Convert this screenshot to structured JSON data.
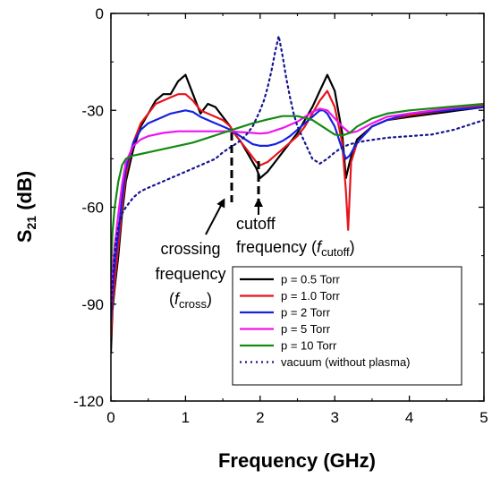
{
  "chart_data": {
    "type": "line",
    "title": "",
    "xlabel": "Frequency (GHz)",
    "ylabel_main": "S",
    "ylabel_sub": "21",
    "ylabel_unit": " (dB)",
    "xlim": [
      0,
      5
    ],
    "ylim": [
      -120,
      0
    ],
    "x_ticks": [
      "0",
      "1",
      "2",
      "3",
      "4",
      "5"
    ],
    "y_ticks": [
      "-120",
      "-90",
      "-60",
      "-30",
      "0"
    ],
    "grid": false,
    "legend_position": "bottom-right",
    "annotations": {
      "crossing": {
        "lines": [
          "crossing",
          "frequency"
        ],
        "paren_open": "(",
        "f": "f",
        "sub": "cross",
        "paren_close": ")"
      },
      "cutoff": {
        "lines": [
          "cutoff"
        ],
        "prefix": "frequency (",
        "f": "f",
        "sub": "cutoff",
        "paren_close": ")"
      }
    },
    "series": [
      {
        "name": "p = 0.5 Torr",
        "color": "#000000",
        "style": "solid",
        "x": [
          0.0,
          0.02,
          0.05,
          0.1,
          0.15,
          0.2,
          0.3,
          0.4,
          0.5,
          0.6,
          0.7,
          0.8,
          0.9,
          1.0,
          1.1,
          1.2,
          1.3,
          1.4,
          1.5,
          1.6,
          1.65,
          1.75,
          1.85,
          1.95,
          2.0,
          2.1,
          2.2,
          2.3,
          2.4,
          2.5,
          2.6,
          2.7,
          2.8,
          2.9,
          3.0,
          3.1,
          3.15,
          3.2,
          3.25,
          3.3,
          3.5,
          3.7,
          4.0,
          4.5,
          5.0
        ],
        "y": [
          -105,
          -92,
          -85,
          -75,
          -62,
          -52,
          -42,
          -35,
          -31,
          -27,
          -25,
          -25,
          -21,
          -19,
          -25,
          -31,
          -28,
          -29,
          -32,
          -35,
          -37,
          -40,
          -44,
          -48,
          -51,
          -49,
          -46,
          -43,
          -40,
          -37,
          -33,
          -29,
          -24,
          -19,
          -24,
          -37,
          -51,
          -46,
          -42,
          -39,
          -35,
          -33,
          -32,
          -30.5,
          -29
        ]
      },
      {
        "name": "p = 1.0 Torr",
        "color": "#e8141b",
        "style": "solid",
        "x": [
          0.0,
          0.02,
          0.05,
          0.1,
          0.15,
          0.2,
          0.3,
          0.4,
          0.5,
          0.6,
          0.7,
          0.8,
          0.9,
          1.0,
          1.1,
          1.2,
          1.3,
          1.4,
          1.5,
          1.6,
          1.65,
          1.75,
          1.85,
          1.95,
          2.0,
          2.1,
          2.2,
          2.3,
          2.4,
          2.5,
          2.6,
          2.7,
          2.8,
          2.9,
          3.0,
          3.1,
          3.15,
          3.18,
          3.22,
          3.3,
          3.5,
          3.7,
          4.0,
          4.5,
          5.0
        ],
        "y": [
          -100,
          -90,
          -83,
          -72,
          -60,
          -50,
          -40,
          -34,
          -31,
          -28,
          -27,
          -26,
          -25,
          -25,
          -27,
          -30,
          -31,
          -32,
          -33,
          -35,
          -37,
          -40,
          -43,
          -46,
          -47,
          -46,
          -44,
          -42,
          -40,
          -38,
          -35,
          -31,
          -27,
          -24,
          -29,
          -40,
          -55,
          -67,
          -46,
          -40,
          -35,
          -33,
          -31.5,
          -30,
          -28.5
        ]
      },
      {
        "name": "p = 2 Torr",
        "color": "#1522e0",
        "style": "solid",
        "x": [
          0.0,
          0.02,
          0.05,
          0.1,
          0.15,
          0.2,
          0.3,
          0.4,
          0.5,
          0.6,
          0.7,
          0.8,
          0.9,
          1.0,
          1.1,
          1.2,
          1.3,
          1.4,
          1.5,
          1.6,
          1.7,
          1.8,
          1.9,
          2.0,
          2.1,
          2.2,
          2.3,
          2.4,
          2.5,
          2.6,
          2.7,
          2.8,
          2.85,
          2.9,
          3.0,
          3.1,
          3.15,
          3.2,
          3.3,
          3.5,
          3.7,
          4.0,
          4.5,
          5.0
        ],
        "y": [
          -95,
          -86,
          -78,
          -68,
          -57,
          -48,
          -40,
          -36,
          -34,
          -33,
          -32,
          -31,
          -30.5,
          -30,
          -30.5,
          -32,
          -33,
          -34,
          -35,
          -36,
          -37.5,
          -39,
          -40.5,
          -41,
          -41,
          -40.5,
          -39.5,
          -38,
          -36,
          -34,
          -32,
          -30,
          -30,
          -31,
          -35,
          -42,
          -45,
          -44,
          -40,
          -35,
          -33,
          -31,
          -30,
          -29
        ]
      },
      {
        "name": "p = 5 Torr",
        "color": "#ee15ee",
        "style": "solid",
        "x": [
          0.0,
          0.02,
          0.05,
          0.1,
          0.15,
          0.2,
          0.3,
          0.4,
          0.5,
          0.7,
          0.9,
          1.1,
          1.3,
          1.5,
          1.6,
          1.7,
          1.9,
          2.0,
          2.1,
          2.3,
          2.5,
          2.7,
          2.8,
          2.9,
          3.0,
          3.1,
          3.2,
          3.3,
          3.5,
          3.7,
          4.0,
          4.5,
          5.0
        ],
        "y": [
          -90,
          -80,
          -72,
          -62,
          -53,
          -46,
          -41,
          -39,
          -38,
          -37,
          -36.5,
          -36.5,
          -36.5,
          -36.5,
          -36.5,
          -36.7,
          -37,
          -37.2,
          -37,
          -35.5,
          -33.5,
          -30.5,
          -29.5,
          -30,
          -32.5,
          -35,
          -37,
          -36.5,
          -34,
          -32,
          -31,
          -29.5,
          -28
        ]
      },
      {
        "name": "p = 10 Torr",
        "color": "#138a13",
        "style": "solid",
        "x": [
          0.0,
          0.02,
          0.05,
          0.1,
          0.15,
          0.2,
          0.3,
          0.4,
          0.5,
          0.7,
          0.9,
          1.1,
          1.3,
          1.5,
          1.7,
          1.9,
          2.1,
          2.3,
          2.5,
          2.7,
          2.9,
          3.0,
          3.1,
          3.2,
          3.3,
          3.5,
          3.7,
          4.0,
          4.5,
          5.0
        ],
        "y": [
          -80,
          -68,
          -60,
          -52,
          -47,
          -45,
          -44,
          -43.5,
          -43,
          -42,
          -41,
          -40,
          -38.5,
          -37,
          -35.5,
          -34,
          -32.8,
          -31.8,
          -31.8,
          -33,
          -36,
          -37.5,
          -37.8,
          -37,
          -35,
          -32.5,
          -31,
          -30,
          -29,
          -28
        ]
      },
      {
        "name": "vacuum (without plasma)",
        "color": "#15158f",
        "style": "dotted",
        "x": [
          0.0,
          0.03,
          0.06,
          0.1,
          0.15,
          0.2,
          0.3,
          0.4,
          0.5,
          0.6,
          0.8,
          1.0,
          1.2,
          1.4,
          1.5,
          1.6,
          1.7,
          1.8,
          1.9,
          2.0,
          2.05,
          2.1,
          2.15,
          2.2,
          2.25,
          2.3,
          2.35,
          2.4,
          2.45,
          2.5,
          2.6,
          2.7,
          2.8,
          2.9,
          3.0,
          3.1,
          3.2,
          3.4,
          3.7,
          4.0,
          4.3,
          4.6,
          5.0
        ],
        "y": [
          -95,
          -80,
          -72,
          -66,
          -62,
          -60,
          -57,
          -55,
          -54,
          -53,
          -51,
          -49,
          -47,
          -45,
          -43,
          -41.5,
          -40,
          -38,
          -35,
          -30,
          -27,
          -23,
          -18,
          -12,
          -7,
          -13,
          -20,
          -26,
          -31,
          -35,
          -40,
          -45,
          -46.5,
          -45,
          -43,
          -41.5,
          -40.5,
          -39.5,
          -38.5,
          -38,
          -37.5,
          -36,
          -33
        ]
      }
    ]
  }
}
